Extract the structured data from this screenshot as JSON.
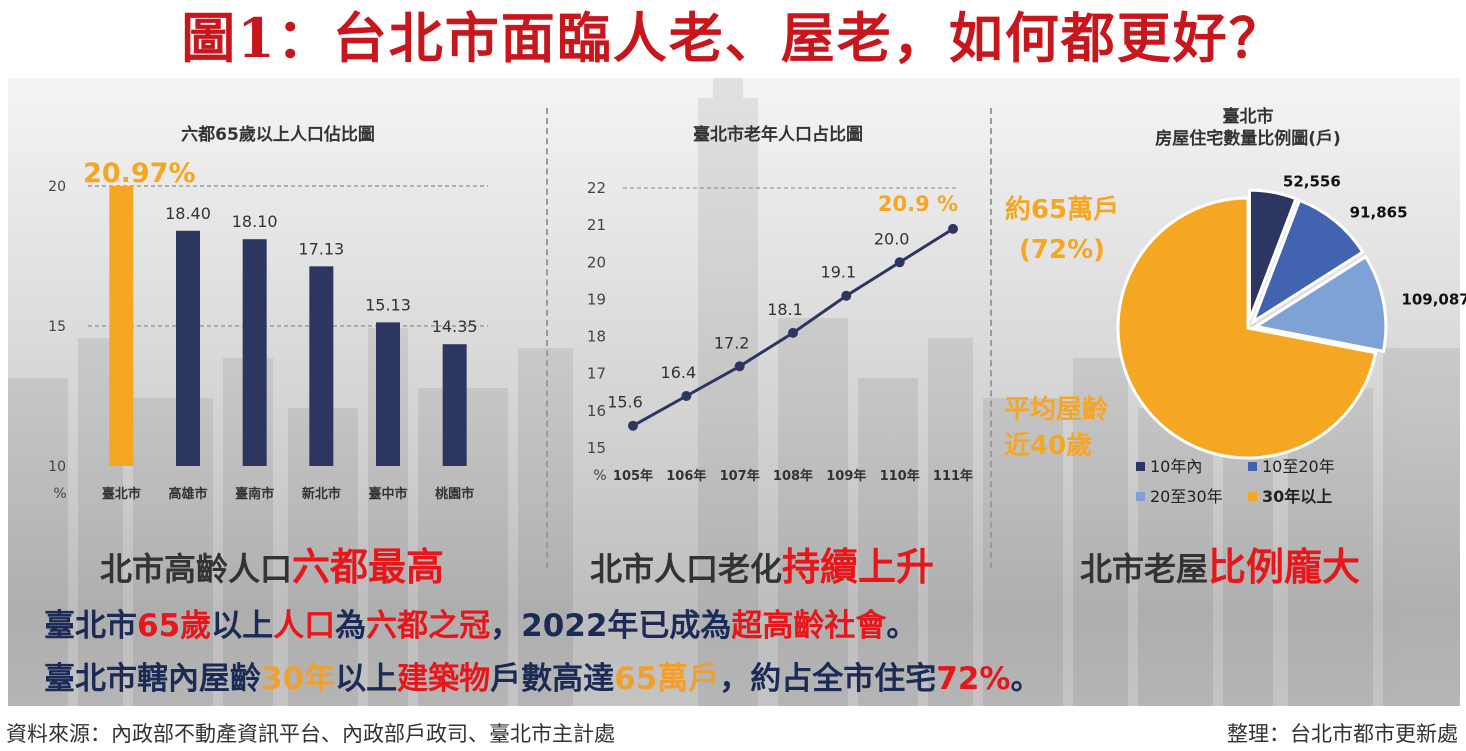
{
  "title": "圖1：台北市面臨人老、屋老，如何都更好？",
  "colors": {
    "title_red": "#c8161d",
    "highlight_orange": "#f5a623",
    "navy": "#2d3561",
    "blue_mid": "#4263b0",
    "blue_light": "#7fa2d6",
    "red_text": "#e8161a"
  },
  "chart_data": [
    {
      "type": "bar",
      "title": "六都65歲以上人口佔比圖",
      "ylabel": "%",
      "ylim": [
        10,
        20
      ],
      "yticks": [
        "20",
        "15",
        "10"
      ],
      "categories": [
        "臺北市",
        "高雄市",
        "臺南市",
        "新北市",
        "臺中市",
        "桃園市"
      ],
      "values": [
        20.97,
        18.4,
        18.1,
        17.13,
        15.13,
        14.35
      ],
      "value_labels": [
        "20.97%",
        "18.40",
        "18.10",
        "17.13",
        "15.13",
        "14.35"
      ]
    },
    {
      "type": "line",
      "title": "臺北市老年人口占比圖",
      "ylabel": "%",
      "ylim": [
        15,
        22
      ],
      "yticks": [
        "22",
        "21",
        "20",
        "19",
        "18",
        "17",
        "16",
        "15"
      ],
      "categories": [
        "105年",
        "106年",
        "107年",
        "108年",
        "109年",
        "110年",
        "111年"
      ],
      "values": [
        15.6,
        16.4,
        17.2,
        18.1,
        19.1,
        20.0,
        20.9
      ],
      "value_labels": [
        "15.6",
        "16.4",
        "17.2",
        "18.1",
        "19.1",
        "20.0",
        "20.9 %"
      ]
    },
    {
      "type": "pie",
      "title": "臺北市\n房屋住宅數量比例圖(戶)",
      "slices": [
        {
          "name": "10年內",
          "value": 52556,
          "label": "52,556"
        },
        {
          "name": "10至20年",
          "value": 91865,
          "label": "91,865"
        },
        {
          "name": "20至30年",
          "value": 109087,
          "label": "109,087"
        },
        {
          "name": "30年以上",
          "value": 650000,
          "label": "約65萬戶"
        }
      ],
      "annotations": [
        "約65萬戶",
        "(72%)",
        "平均屋齡",
        "近40歲"
      ],
      "legend": [
        "10年內",
        "10至20年",
        "20至30年",
        "30年以上"
      ]
    }
  ],
  "subtitles": {
    "s1_a": "北市高齡人口",
    "s1_b": "六都最高",
    "s2_a": "北市人口老化",
    "s2_b": "持續上升",
    "s3_a": "北市老屋",
    "s3_b": "比例龐大"
  },
  "line1": [
    "臺北市",
    "65歲",
    "以上",
    "人口",
    "為",
    "六都之冠",
    "，2022年已成為",
    "超高齡社會",
    "。"
  ],
  "line2": [
    "臺北市轄內屋齡",
    "30年",
    "以上",
    "建築物",
    "戶數高達",
    "65萬戶",
    "，約占全市住宅",
    "72%",
    "。"
  ],
  "footer": {
    "source": "資料來源：內政部不動產資訊平台、內政部戶政司、臺北市主計處",
    "credit": "整理：台北市都市更新處"
  }
}
